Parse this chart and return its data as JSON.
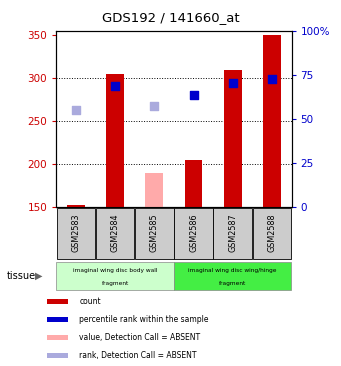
{
  "title": "GDS192 / 141660_at",
  "samples": [
    "GSM2583",
    "GSM2584",
    "GSM2585",
    "GSM2586",
    "GSM2587",
    "GSM2588"
  ],
  "ylim_left": [
    150,
    355
  ],
  "ylim_right": [
    0,
    100
  ],
  "yticks_left": [
    150,
    200,
    250,
    300,
    350
  ],
  "yticks_right": [
    0,
    25,
    50,
    75,
    100
  ],
  "count_values": [
    152,
    305,
    null,
    205,
    310,
    350
  ],
  "count_color": "#cc0000",
  "rank_values": [
    null,
    291,
    null,
    281,
    295,
    299
  ],
  "rank_color": "#0000cc",
  "value_absent": [
    null,
    null,
    190,
    null,
    null,
    null
  ],
  "value_absent_color": "#ffaaaa",
  "rank_absent": [
    263,
    null,
    268,
    null,
    null,
    null
  ],
  "rank_absent_color": "#aaaadd",
  "tissue_groups": [
    {
      "label": "imaginal wing disc body wall",
      "sublabel": "fragment",
      "samples": [
        0,
        1,
        2
      ],
      "color": "#ccffcc"
    },
    {
      "label": "imaginal wing disc wing/hinge",
      "sublabel": "fragment",
      "samples": [
        3,
        4,
        5
      ],
      "color": "#44ee44"
    }
  ],
  "bar_width": 0.45,
  "marker_size": 36,
  "legend_items": [
    {
      "label": "count",
      "color": "#cc0000"
    },
    {
      "label": "percentile rank within the sample",
      "color": "#0000cc"
    },
    {
      "label": "value, Detection Call = ABSENT",
      "color": "#ffaaaa"
    },
    {
      "label": "rank, Detection Call = ABSENT",
      "color": "#aaaadd"
    }
  ],
  "tissue_label": "tissue",
  "background_color": "#ffffff",
  "plot_bg": "#ffffff",
  "left_axis_color": "#cc0000",
  "right_axis_color": "#0000cc",
  "sample_box_color": "#cccccc",
  "grid_lines": [
    200,
    250,
    300
  ]
}
